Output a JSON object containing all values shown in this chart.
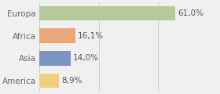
{
  "categories": [
    "Europa",
    "Africa",
    "Asia",
    "America"
  ],
  "values": [
    61.0,
    16.1,
    14.0,
    8.9
  ],
  "labels": [
    "61,0%",
    "16,1%",
    "14,0%",
    "8,9%"
  ],
  "bar_colors": [
    "#b5c99a",
    "#e8a87c",
    "#7b93c0",
    "#f0d080"
  ],
  "background_color": "#f0f0f0",
  "xlim": [
    0,
    80
  ],
  "bar_height": 0.65,
  "label_fontsize": 7.5,
  "tick_fontsize": 7.5,
  "grid_color": "#cccccc",
  "grid_ticks": [
    0,
    26.67,
    53.33,
    80
  ]
}
